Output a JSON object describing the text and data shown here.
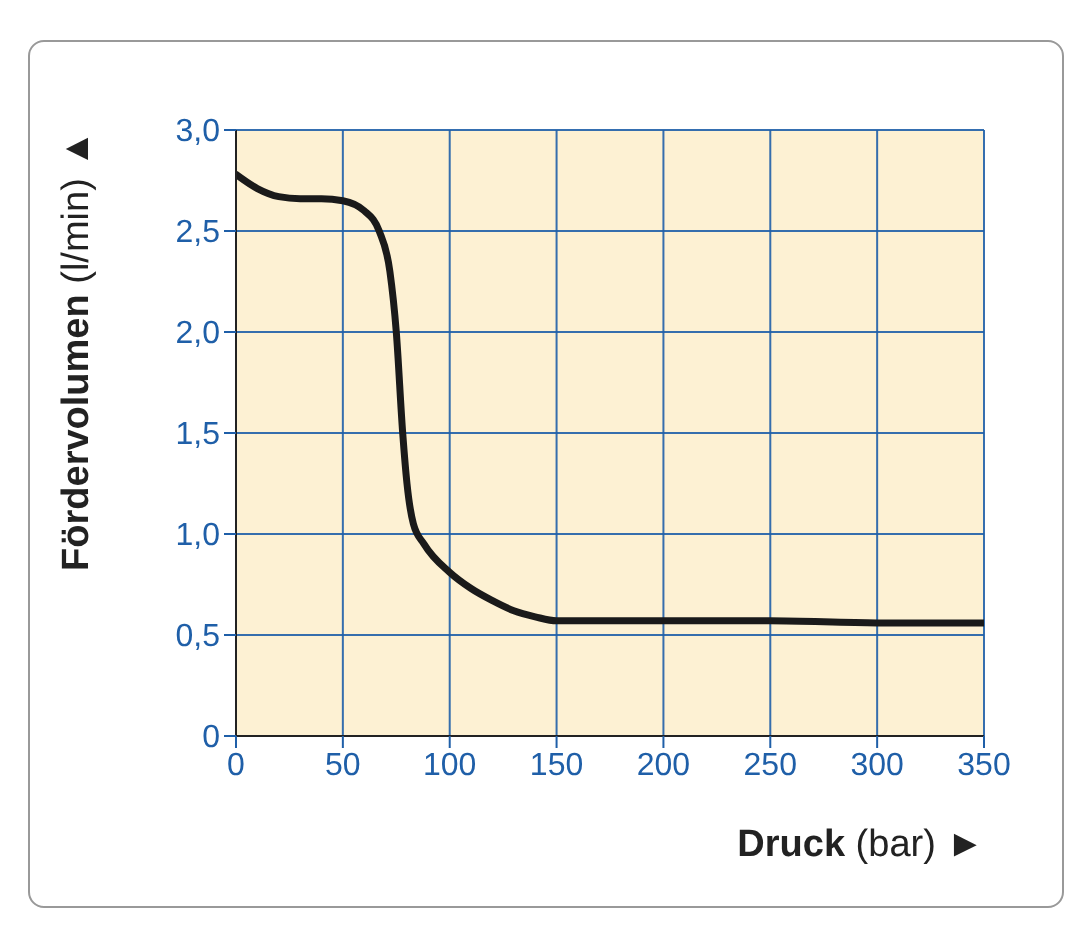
{
  "chart_data": {
    "type": "line",
    "xlabel": "Druck (bar) ►",
    "ylabel": "Fördervolumen (l/min) ▲",
    "x": [
      0,
      10,
      20,
      30,
      40,
      50,
      60,
      67,
      72,
      75,
      78,
      80,
      83,
      88,
      100,
      110,
      120,
      130,
      140,
      150,
      200,
      250,
      300,
      350
    ],
    "series": [
      {
        "color": "#1a1a1a",
        "values": [
          2.78,
          2.71,
          2.67,
          2.66,
          2.66,
          2.65,
          2.6,
          2.5,
          2.3,
          2.0,
          1.5,
          1.25,
          1.05,
          0.95,
          0.81,
          0.73,
          0.67,
          0.62,
          0.59,
          0.57,
          0.57,
          0.57,
          0.56,
          0.56
        ]
      }
    ],
    "xlim": [
      0,
      350
    ],
    "xticks": [
      0,
      50,
      100,
      150,
      200,
      250,
      300,
      350
    ],
    "ylim": [
      0,
      3
    ],
    "yticks": [
      0,
      {
        "value": 0.5,
        "label": "0,5"
      },
      {
        "value": 1,
        "label": "1,0"
      },
      {
        "value": 1.5,
        "label": "1,5"
      },
      {
        "value": 2,
        "label": "2,0"
      },
      {
        "value": 2.5,
        "label": "2,5"
      },
      {
        "value": 3,
        "label": "3,0"
      }
    ],
    "grid": true,
    "legend": false,
    "marker": "none",
    "line_style": "solid"
  }
}
